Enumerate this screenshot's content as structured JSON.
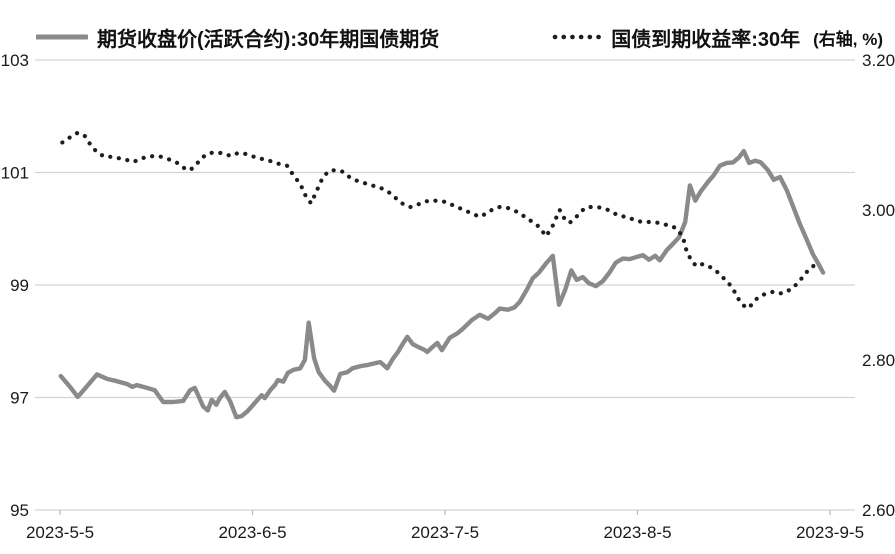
{
  "chart_data": {
    "type": "line",
    "title": "",
    "legend_position": "top",
    "grid": "horizontal",
    "x_axis": {
      "tick_labels": [
        "2023-5-5",
        "2023-6-5",
        "2023-7-5",
        "2023-8-5",
        "2023-9-5"
      ]
    },
    "left_axis": {
      "min": 95,
      "max": 103,
      "tick_labels": [
        "103",
        "101",
        "99",
        "97",
        "95"
      ],
      "tick_values": [
        103,
        101,
        99,
        97,
        95
      ]
    },
    "right_axis": {
      "min": 2.6,
      "max": 3.2,
      "tick_labels": [
        "3.20",
        "3.00",
        "2.80",
        "2.60"
      ],
      "tick_values": [
        3.2,
        3.0,
        2.8,
        2.6
      ]
    },
    "colors": {
      "futures_line": "#8a8a8a",
      "yield_line": "#1e1e1e",
      "grid": "#d3d3d3",
      "tick": "#bdbdbd",
      "text": "#1a1a1a"
    },
    "series": [
      {
        "name": "期货收盘价(活跃合约):30年期国债期货",
        "axis": "left",
        "style": "solid",
        "color": "#8a8a8a",
        "points": [
          [
            0.001,
            97.38
          ],
          [
            0.013,
            97.19
          ],
          [
            0.023,
            97.01
          ],
          [
            0.035,
            97.2
          ],
          [
            0.048,
            97.41
          ],
          [
            0.061,
            97.33
          ],
          [
            0.074,
            97.29
          ],
          [
            0.087,
            97.24
          ],
          [
            0.094,
            97.19
          ],
          [
            0.1,
            97.22
          ],
          [
            0.113,
            97.17
          ],
          [
            0.123,
            97.13
          ],
          [
            0.134,
            96.92
          ],
          [
            0.147,
            96.92
          ],
          [
            0.16,
            96.94
          ],
          [
            0.169,
            97.13
          ],
          [
            0.175,
            97.17
          ],
          [
            0.186,
            96.84
          ],
          [
            0.192,
            96.77
          ],
          [
            0.197,
            96.96
          ],
          [
            0.203,
            96.87
          ],
          [
            0.208,
            97.0
          ],
          [
            0.214,
            97.1
          ],
          [
            0.221,
            96.93
          ],
          [
            0.229,
            96.65
          ],
          [
            0.236,
            96.67
          ],
          [
            0.243,
            96.75
          ],
          [
            0.249,
            96.84
          ],
          [
            0.256,
            96.95
          ],
          [
            0.262,
            97.04
          ],
          [
            0.266,
            96.99
          ],
          [
            0.273,
            97.13
          ],
          [
            0.279,
            97.22
          ],
          [
            0.283,
            97.31
          ],
          [
            0.29,
            97.28
          ],
          [
            0.296,
            97.44
          ],
          [
            0.303,
            97.49
          ],
          [
            0.312,
            97.52
          ],
          [
            0.318,
            97.67
          ],
          [
            0.323,
            98.33
          ],
          [
            0.33,
            97.7
          ],
          [
            0.336,
            97.45
          ],
          [
            0.344,
            97.3
          ],
          [
            0.351,
            97.2
          ],
          [
            0.356,
            97.12
          ],
          [
            0.364,
            97.42
          ],
          [
            0.373,
            97.45
          ],
          [
            0.38,
            97.52
          ],
          [
            0.391,
            97.56
          ],
          [
            0.4,
            97.58
          ],
          [
            0.409,
            97.61
          ],
          [
            0.416,
            97.63
          ],
          [
            0.425,
            97.52
          ],
          [
            0.432,
            97.68
          ],
          [
            0.439,
            97.81
          ],
          [
            0.445,
            97.95
          ],
          [
            0.451,
            98.08
          ],
          [
            0.458,
            97.95
          ],
          [
            0.465,
            97.9
          ],
          [
            0.473,
            97.85
          ],
          [
            0.477,
            97.81
          ],
          [
            0.484,
            97.9
          ],
          [
            0.49,
            97.97
          ],
          [
            0.496,
            97.84
          ],
          [
            0.506,
            98.06
          ],
          [
            0.516,
            98.14
          ],
          [
            0.523,
            98.22
          ],
          [
            0.535,
            98.38
          ],
          [
            0.545,
            98.47
          ],
          [
            0.556,
            98.4
          ],
          [
            0.565,
            98.5
          ],
          [
            0.571,
            98.58
          ],
          [
            0.582,
            98.56
          ],
          [
            0.59,
            98.6
          ],
          [
            0.597,
            98.7
          ],
          [
            0.606,
            98.91
          ],
          [
            0.614,
            99.12
          ],
          [
            0.622,
            99.22
          ],
          [
            0.631,
            99.38
          ],
          [
            0.64,
            99.52
          ],
          [
            0.648,
            98.65
          ],
          [
            0.656,
            98.91
          ],
          [
            0.664,
            99.26
          ],
          [
            0.671,
            99.09
          ],
          [
            0.679,
            99.14
          ],
          [
            0.687,
            99.03
          ],
          [
            0.696,
            98.98
          ],
          [
            0.705,
            99.07
          ],
          [
            0.714,
            99.23
          ],
          [
            0.722,
            99.4
          ],
          [
            0.731,
            99.47
          ],
          [
            0.74,
            99.46
          ],
          [
            0.749,
            99.5
          ],
          [
            0.757,
            99.53
          ],
          [
            0.765,
            99.45
          ],
          [
            0.773,
            99.52
          ],
          [
            0.779,
            99.44
          ],
          [
            0.788,
            99.62
          ],
          [
            0.796,
            99.73
          ],
          [
            0.804,
            99.85
          ],
          [
            0.812,
            100.12
          ],
          [
            0.818,
            100.77
          ],
          [
            0.825,
            100.5
          ],
          [
            0.832,
            100.66
          ],
          [
            0.842,
            100.84
          ],
          [
            0.849,
            100.95
          ],
          [
            0.857,
            101.12
          ],
          [
            0.866,
            101.17
          ],
          [
            0.874,
            101.18
          ],
          [
            0.882,
            101.27
          ],
          [
            0.888,
            101.38
          ],
          [
            0.895,
            101.17
          ],
          [
            0.903,
            101.21
          ],
          [
            0.91,
            101.18
          ],
          [
            0.919,
            101.05
          ],
          [
            0.927,
            100.87
          ],
          [
            0.935,
            100.92
          ],
          [
            0.944,
            100.68
          ],
          [
            0.952,
            100.4
          ],
          [
            0.961,
            100.08
          ],
          [
            0.97,
            99.8
          ],
          [
            0.978,
            99.54
          ],
          [
            0.984,
            99.4
          ],
          [
            0.991,
            99.22
          ]
        ]
      },
      {
        "name": "国债到期收益率:30年",
        "axis_note": "(右轴, %)",
        "axis": "right",
        "style": "dotted",
        "color": "#1e1e1e",
        "points": [
          [
            0.003,
            3.09
          ],
          [
            0.013,
            3.097
          ],
          [
            0.023,
            3.103
          ],
          [
            0.032,
            3.099
          ],
          [
            0.039,
            3.088
          ],
          [
            0.048,
            3.077
          ],
          [
            0.058,
            3.071
          ],
          [
            0.068,
            3.071
          ],
          [
            0.077,
            3.069
          ],
          [
            0.086,
            3.067
          ],
          [
            0.095,
            3.064
          ],
          [
            0.104,
            3.068
          ],
          [
            0.113,
            3.071
          ],
          [
            0.123,
            3.072
          ],
          [
            0.132,
            3.071
          ],
          [
            0.143,
            3.067
          ],
          [
            0.152,
            3.063
          ],
          [
            0.161,
            3.056
          ],
          [
            0.169,
            3.053
          ],
          [
            0.177,
            3.061
          ],
          [
            0.186,
            3.071
          ],
          [
            0.195,
            3.076
          ],
          [
            0.204,
            3.077
          ],
          [
            0.213,
            3.075
          ],
          [
            0.222,
            3.072
          ],
          [
            0.231,
            3.076
          ],
          [
            0.24,
            3.075
          ],
          [
            0.249,
            3.072
          ],
          [
            0.258,
            3.069
          ],
          [
            0.268,
            3.067
          ],
          [
            0.277,
            3.064
          ],
          [
            0.286,
            3.061
          ],
          [
            0.295,
            3.059
          ],
          [
            0.304,
            3.045
          ],
          [
            0.312,
            3.035
          ],
          [
            0.319,
            3.019
          ],
          [
            0.326,
            3.009
          ],
          [
            0.334,
            3.027
          ],
          [
            0.342,
            3.045
          ],
          [
            0.351,
            3.053
          ],
          [
            0.36,
            3.053
          ],
          [
            0.368,
            3.051
          ],
          [
            0.377,
            3.043
          ],
          [
            0.386,
            3.039
          ],
          [
            0.395,
            3.036
          ],
          [
            0.404,
            3.033
          ],
          [
            0.413,
            3.031
          ],
          [
            0.422,
            3.027
          ],
          [
            0.431,
            3.021
          ],
          [
            0.439,
            3.013
          ],
          [
            0.447,
            3.007
          ],
          [
            0.455,
            3.004
          ],
          [
            0.464,
            3.007
          ],
          [
            0.473,
            3.011
          ],
          [
            0.482,
            3.013
          ],
          [
            0.491,
            3.012
          ],
          [
            0.5,
            3.011
          ],
          [
            0.509,
            3.007
          ],
          [
            0.518,
            3.003
          ],
          [
            0.527,
            2.999
          ],
          [
            0.536,
            2.995
          ],
          [
            0.545,
            2.991
          ],
          [
            0.555,
            2.996
          ],
          [
            0.562,
            3.001
          ],
          [
            0.571,
            3.004
          ],
          [
            0.581,
            3.003
          ],
          [
            0.588,
            3.0
          ],
          [
            0.597,
            2.996
          ],
          [
            0.606,
            2.989
          ],
          [
            0.614,
            2.984
          ],
          [
            0.623,
            2.977
          ],
          [
            0.631,
            2.965
          ],
          [
            0.639,
            2.977
          ],
          [
            0.649,
            3.0
          ],
          [
            0.656,
            2.987
          ],
          [
            0.662,
            2.983
          ],
          [
            0.669,
            2.989
          ],
          [
            0.675,
            2.996
          ],
          [
            0.682,
            3.003
          ],
          [
            0.688,
            3.004
          ],
          [
            0.696,
            3.004
          ],
          [
            0.704,
            3.003
          ],
          [
            0.712,
            3.0
          ],
          [
            0.719,
            2.996
          ],
          [
            0.727,
            2.992
          ],
          [
            0.735,
            2.991
          ],
          [
            0.743,
            2.988
          ],
          [
            0.751,
            2.985
          ],
          [
            0.76,
            2.984
          ],
          [
            0.769,
            2.984
          ],
          [
            0.777,
            2.983
          ],
          [
            0.784,
            2.981
          ],
          [
            0.794,
            2.979
          ],
          [
            0.801,
            2.975
          ],
          [
            0.809,
            2.964
          ],
          [
            0.814,
            2.944
          ],
          [
            0.821,
            2.931
          ],
          [
            0.827,
            2.925
          ],
          [
            0.835,
            2.928
          ],
          [
            0.844,
            2.924
          ],
          [
            0.852,
            2.919
          ],
          [
            0.86,
            2.911
          ],
          [
            0.868,
            2.903
          ],
          [
            0.875,
            2.893
          ],
          [
            0.88,
            2.883
          ],
          [
            0.887,
            2.873
          ],
          [
            0.894,
            2.869
          ],
          [
            0.9,
            2.876
          ],
          [
            0.906,
            2.883
          ],
          [
            0.913,
            2.887
          ],
          [
            0.919,
            2.889
          ],
          [
            0.926,
            2.891
          ],
          [
            0.932,
            2.889
          ],
          [
            0.939,
            2.889
          ],
          [
            0.945,
            2.892
          ],
          [
            0.952,
            2.896
          ],
          [
            0.958,
            2.903
          ],
          [
            0.965,
            2.911
          ],
          [
            0.971,
            2.919
          ],
          [
            0.978,
            2.925
          ],
          [
            0.984,
            2.931
          ]
        ]
      }
    ]
  }
}
